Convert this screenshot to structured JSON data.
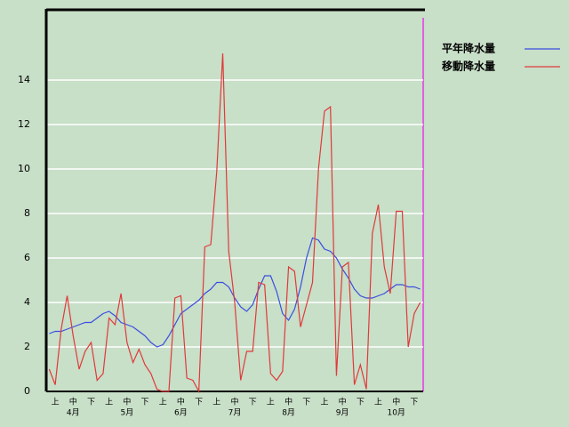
{
  "chart_data": {
    "type": "line",
    "categories": [
      null,
      "上",
      null,
      null,
      "中",
      null,
      null,
      "下",
      null,
      null,
      "上",
      null,
      null,
      "中",
      null,
      null,
      "下",
      null,
      null,
      "上",
      null,
      null,
      "中",
      null,
      null,
      "下",
      null,
      null,
      "上",
      null,
      null,
      "中",
      null,
      null,
      "下",
      null,
      null,
      "上",
      null,
      null,
      "中",
      null,
      null,
      "下",
      null,
      null,
      "上",
      null,
      null,
      "中",
      null,
      null,
      "下",
      null,
      null,
      "上",
      null,
      null,
      "中",
      null,
      null,
      "下",
      null
    ],
    "months": [
      "4月",
      "5月",
      "6月",
      "7月",
      "8月",
      "9月",
      "10月"
    ],
    "series": [
      {
        "name": "平年降水量",
        "color": "#3a4ee0",
        "values": [
          2.6,
          2.7,
          2.7,
          2.8,
          2.9,
          3.0,
          3.1,
          3.1,
          3.3,
          3.5,
          3.6,
          3.4,
          3.1,
          3.0,
          2.9,
          2.7,
          2.5,
          2.2,
          2.0,
          2.1,
          2.5,
          3.0,
          3.5,
          3.7,
          3.9,
          4.1,
          4.4,
          4.6,
          4.9,
          4.9,
          4.7,
          4.2,
          3.8,
          3.6,
          3.9,
          4.6,
          5.2,
          5.2,
          4.5,
          3.5,
          3.2,
          3.7,
          4.7,
          6.0,
          6.9,
          6.8,
          6.4,
          6.3,
          6.0,
          5.5,
          5.1,
          4.6,
          4.3,
          4.2,
          4.2,
          4.3,
          4.4,
          4.6,
          4.8,
          4.8,
          4.7,
          4.7,
          4.6
        ]
      },
      {
        "name": "移動降水量",
        "color": "#e03a3a",
        "values": [
          1.0,
          0.3,
          2.8,
          4.3,
          2.5,
          1.0,
          1.8,
          2.2,
          0.5,
          0.8,
          3.3,
          3.0,
          4.4,
          2.2,
          1.3,
          1.9,
          1.2,
          0.8,
          0.1,
          0,
          0,
          4.2,
          4.3,
          0.6,
          0.5,
          0,
          6.5,
          6.6,
          9.9,
          15.2,
          6.3,
          4.0,
          0.5,
          1.8,
          1.8,
          4.9,
          4.8,
          0.8,
          0.5,
          0.9,
          5.6,
          5.4,
          2.9,
          3.9,
          4.9,
          10.0,
          12.6,
          12.8,
          0.7,
          5.6,
          5.8,
          0.3,
          1.2,
          0.1,
          7.1,
          8.4,
          5.6,
          4.4,
          8.1,
          8.1,
          2.0,
          3.5,
          4.0
        ]
      }
    ],
    "ylim": [
      0,
      17
    ],
    "yticks": [
      0,
      2,
      4,
      6,
      8,
      10,
      12,
      14
    ],
    "grid": true
  }
}
